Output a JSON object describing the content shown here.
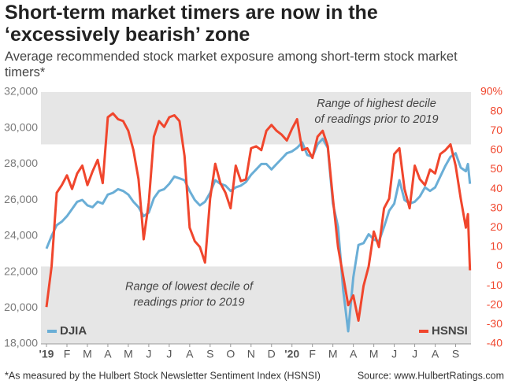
{
  "chart_data": {
    "type": "line",
    "title": "Short-term market timers are now in the ‘excessively bearish’ zone",
    "subtitle": "Average recommended stock market exposure among short-term stock market timers*",
    "note": "*As measured by the Hulbert Stock Newsletter Sentiment Index (HSNSI)",
    "source": "Source: www.HulbertRatings.com",
    "xlim": [
      -0.27,
      20.75
    ],
    "xticks": [
      {
        "value": 0,
        "label": "'19"
      },
      {
        "value": 1,
        "label": "F"
      },
      {
        "value": 2,
        "label": "M"
      },
      {
        "value": 3,
        "label": "A"
      },
      {
        "value": 4,
        "label": "M"
      },
      {
        "value": 5,
        "label": "J"
      },
      {
        "value": 6,
        "label": "J"
      },
      {
        "value": 7,
        "label": "A"
      },
      {
        "value": 8,
        "label": "S"
      },
      {
        "value": 9,
        "label": "O"
      },
      {
        "value": 10,
        "label": "N"
      },
      {
        "value": 11,
        "label": "D"
      },
      {
        "value": 12,
        "label": "'20"
      },
      {
        "value": 13,
        "label": "F"
      },
      {
        "value": 14,
        "label": "M"
      },
      {
        "value": 15,
        "label": "A"
      },
      {
        "value": 16,
        "label": "M"
      },
      {
        "value": 17,
        "label": "J"
      },
      {
        "value": 18,
        "label": "J"
      },
      {
        "value": 19,
        "label": "A"
      },
      {
        "value": 20,
        "label": "S"
      }
    ],
    "ylim": [
      18000,
      32000
    ],
    "yticks": [
      {
        "value": 18000,
        "label": "18,000"
      },
      {
        "value": 20000,
        "label": "20,000"
      },
      {
        "value": 22000,
        "label": "22,000"
      },
      {
        "value": 24000,
        "label": "24,000"
      },
      {
        "value": 26000,
        "label": "26,000"
      },
      {
        "value": 28000,
        "label": "28,000"
      },
      {
        "value": 30000,
        "label": "30,000"
      },
      {
        "value": 32000,
        "label": "32,000"
      }
    ],
    "y2lim": [
      -40,
      90
    ],
    "y2ticks": [
      -40,
      -30,
      -20,
      -10,
      0,
      10,
      20,
      30,
      40,
      50,
      60,
      70,
      80,
      {
        "value": 90,
        "label": "90%"
      }
    ],
    "bands": [
      {
        "label_lines": [
          "Range of highest decile",
          "of readings prior to 2019"
        ],
        "range": [
          63,
          90
        ],
        "axis": "y2",
        "color": "#e6e6e6"
      },
      {
        "label_lines": [
          "Range of lowest decile of",
          "readings prior to 2019"
        ],
        "range": [
          -40,
          0
        ],
        "axis": "y2",
        "color": "#e6e6e6"
      }
    ],
    "x": [
      0,
      0.25,
      0.5,
      0.75,
      1,
      1.25,
      1.5,
      1.75,
      2,
      2.25,
      2.5,
      2.75,
      3,
      3.25,
      3.5,
      3.75,
      4,
      4.25,
      4.5,
      4.75,
      5,
      5.25,
      5.5,
      5.75,
      6,
      6.25,
      6.5,
      6.75,
      7,
      7.25,
      7.5,
      7.75,
      8,
      8.25,
      8.5,
      8.75,
      9,
      9.25,
      9.5,
      9.75,
      10,
      10.25,
      10.5,
      10.75,
      11,
      11.25,
      11.5,
      11.75,
      12,
      12.25,
      12.5,
      12.75,
      13,
      13.25,
      13.5,
      13.75,
      14,
      14.25,
      14.5,
      14.75,
      15,
      15.25,
      15.5,
      15.75,
      16,
      16.25,
      16.5,
      16.75,
      17,
      17.25,
      17.5,
      17.75,
      18,
      18.25,
      18.5,
      18.75,
      19,
      19.25,
      19.5,
      19.75,
      20,
      20.25,
      20.5,
      20.6,
      20.7
    ],
    "series": [
      {
        "name": "DJIA",
        "color": "#6aaed6",
        "axis": "y",
        "legend": "bottom-left",
        "values": [
          23300,
          24000,
          24600,
          24800,
          25100,
          25500,
          25900,
          26000,
          25700,
          25600,
          25900,
          25800,
          26300,
          26400,
          26600,
          26500,
          26300,
          25900,
          25600,
          25100,
          25300,
          26100,
          26500,
          26600,
          26900,
          27300,
          27200,
          27100,
          26500,
          26000,
          25700,
          25900,
          26400,
          27100,
          26900,
          26800,
          26500,
          26700,
          26800,
          27000,
          27400,
          27700,
          28000,
          28000,
          27700,
          28000,
          28300,
          28600,
          28700,
          28900,
          29200,
          28500,
          28400,
          29100,
          29400,
          28900,
          25800,
          24500,
          21000,
          18700,
          21700,
          23500,
          23600,
          24100,
          23800,
          23700,
          24500,
          25400,
          25800,
          27100,
          26000,
          25800,
          25900,
          26200,
          26700,
          26500,
          26700,
          27300,
          27900,
          28400,
          28600,
          27800,
          27600,
          28000,
          26900
        ]
      },
      {
        "name": "HSNSI",
        "color": "#f0462d",
        "axis": "y2",
        "legend": "bottom-right",
        "values": [
          -21,
          0,
          38,
          42,
          47,
          40,
          48,
          52,
          42,
          49,
          55,
          43,
          77,
          79,
          76,
          75,
          70,
          60,
          45,
          14,
          33,
          67,
          75,
          72,
          77,
          78,
          75,
          57,
          20,
          13,
          10,
          2,
          35,
          53,
          43,
          38,
          30,
          52,
          44,
          45,
          61,
          62,
          60,
          70,
          73,
          70,
          68,
          65,
          71,
          76,
          60,
          61,
          56,
          67,
          70,
          62,
          35,
          10,
          -5,
          -20,
          -15,
          -28,
          -10,
          0,
          18,
          10,
          30,
          35,
          58,
          61,
          40,
          30,
          52,
          45,
          42,
          50,
          48,
          58,
          60,
          63,
          52,
          35,
          20,
          27,
          -2
        ]
      }
    ]
  }
}
